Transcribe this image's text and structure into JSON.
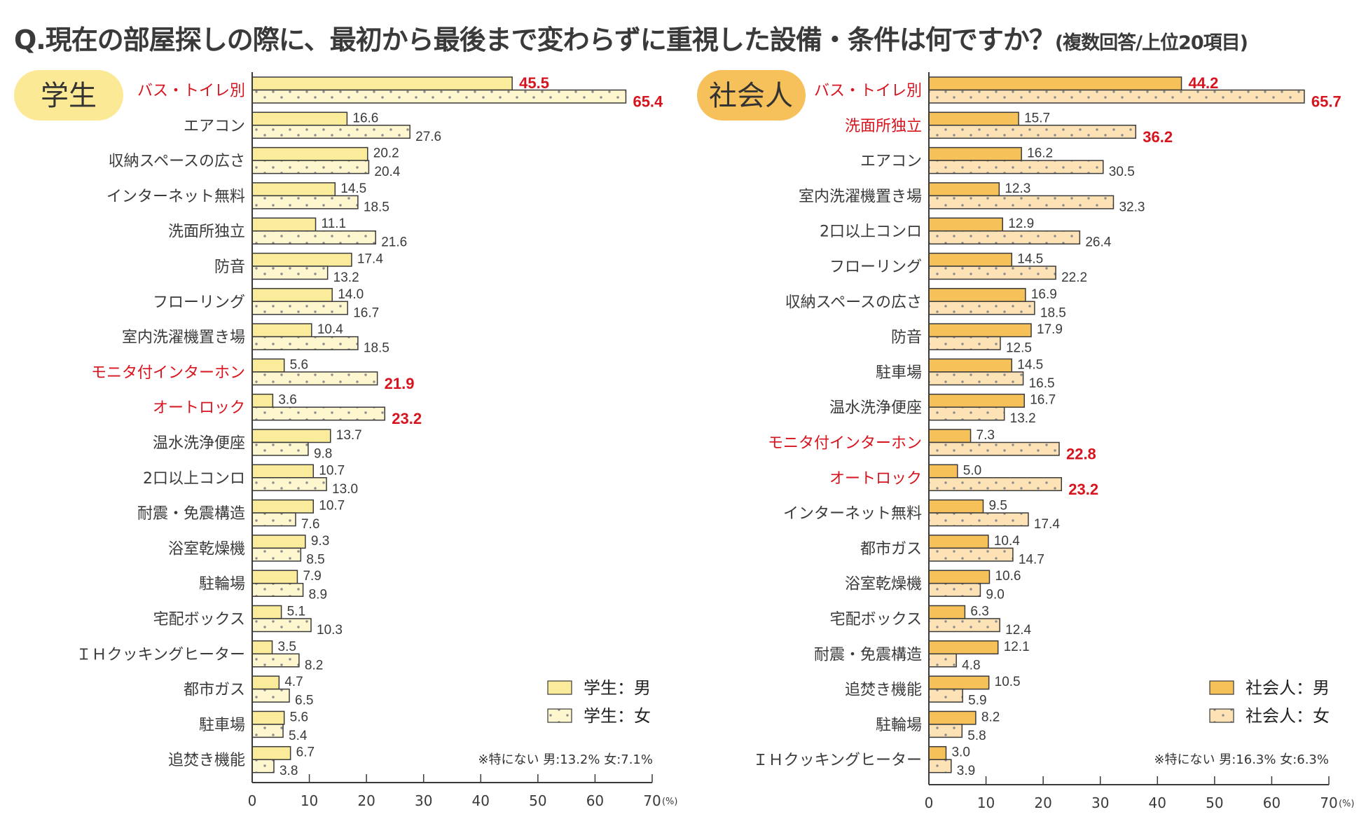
{
  "title": {
    "main": "Q.現在の部屋探しの際に、最初から最後まで変わらずに重視した設備・条件は何ですか？",
    "sub": "(複数回答/上位20項目)"
  },
  "colors": {
    "student_male": "#fbec9b",
    "student_female": "#fdf6cf",
    "student_badge": "#fbe996",
    "worker_male": "#f7c15a",
    "worker_female": "#fde2b5",
    "worker_badge": "#f6c15b",
    "highlight": "#d7141e",
    "dot": "#8c8c8c",
    "border": "#3a3a3a"
  },
  "chart_data": [
    {
      "type": "bar",
      "orientation": "horizontal",
      "group": "学生",
      "badge": "学生",
      "categories": [
        "バス・トイレ別",
        "エアコン",
        "収納スペースの広さ",
        "インターネット無料",
        "洗面所独立",
        "防音",
        "フローリング",
        "室内洗濯機置き場",
        "モニタ付インターホン",
        "オートロック",
        "温水洗浄便座",
        "2口以上コンロ",
        "耐震・免震構造",
        "浴室乾燥機",
        "駐輪場",
        "宅配ボックス",
        "ＩＨクッキングヒーター",
        "都市ガス",
        "駐車場",
        "追焚き機能"
      ],
      "highlighted": [
        "バス・トイレ別",
        "モニタ付インターホン",
        "オートロック"
      ],
      "series": [
        {
          "name": "学生：男",
          "values": [
            45.5,
            16.6,
            20.2,
            14.5,
            11.1,
            17.4,
            14.0,
            10.4,
            5.6,
            3.6,
            13.7,
            10.7,
            10.7,
            9.3,
            7.9,
            5.1,
            3.5,
            4.7,
            5.6,
            6.7
          ]
        },
        {
          "name": "学生：女",
          "values": [
            65.4,
            27.6,
            20.4,
            18.5,
            21.6,
            13.2,
            16.7,
            18.5,
            21.9,
            23.2,
            9.8,
            13.0,
            7.6,
            8.5,
            8.9,
            10.3,
            8.2,
            6.5,
            5.4,
            3.8
          ]
        }
      ],
      "highlighted_values": {
        "0": [
          true,
          true
        ],
        "8": [
          false,
          true
        ],
        "9": [
          false,
          true
        ]
      },
      "xlim": [
        0,
        70
      ],
      "xticks": [
        "0",
        "10",
        "20",
        "30",
        "40",
        "50",
        "60",
        "70"
      ],
      "xunit": "(%)",
      "legend": [
        "学生：男",
        "学生：女"
      ],
      "legend_position": "bottom-right",
      "note": "※特にない 男:13.2% 女:7.1%",
      "grid": false
    },
    {
      "type": "bar",
      "orientation": "horizontal",
      "group": "社会人",
      "badge": "社会人",
      "categories": [
        "バス・トイレ別",
        "洗面所独立",
        "エアコン",
        "室内洗濯機置き場",
        "2口以上コンロ",
        "フローリング",
        "収納スペースの広さ",
        "防音",
        "駐車場",
        "温水洗浄便座",
        "モニタ付インターホン",
        "オートロック",
        "インターネット無料",
        "都市ガス",
        "浴室乾燥機",
        "宅配ボックス",
        "耐震・免震構造",
        "追焚き機能",
        "駐輪場",
        "ＩＨクッキングヒーター"
      ],
      "highlighted": [
        "バス・トイレ別",
        "洗面所独立",
        "モニタ付インターホン",
        "オートロック"
      ],
      "series": [
        {
          "name": "社会人：男",
          "values": [
            44.2,
            15.7,
            16.2,
            12.3,
            12.9,
            14.5,
            16.9,
            17.9,
            14.5,
            16.7,
            7.3,
            5.0,
            9.5,
            10.4,
            10.6,
            6.3,
            12.1,
            10.5,
            8.2,
            3.0
          ]
        },
        {
          "name": "社会人：女",
          "values": [
            65.7,
            36.2,
            30.5,
            32.3,
            26.4,
            22.2,
            18.5,
            12.5,
            16.5,
            13.2,
            22.8,
            23.2,
            17.4,
            14.7,
            9.0,
            12.4,
            4.8,
            5.9,
            5.8,
            3.9
          ]
        }
      ],
      "highlighted_values": {
        "0": [
          true,
          true
        ],
        "1": [
          false,
          true
        ],
        "10": [
          false,
          true
        ],
        "11": [
          false,
          true
        ]
      },
      "xlim": [
        0,
        70
      ],
      "xticks": [
        "0",
        "10",
        "20",
        "30",
        "40",
        "50",
        "60",
        "70"
      ],
      "xunit": "(%)",
      "legend": [
        "社会人：男",
        "社会人：女"
      ],
      "legend_position": "bottom-right",
      "note": "※特にない 男:16.3% 女:6.3%",
      "grid": false
    }
  ]
}
